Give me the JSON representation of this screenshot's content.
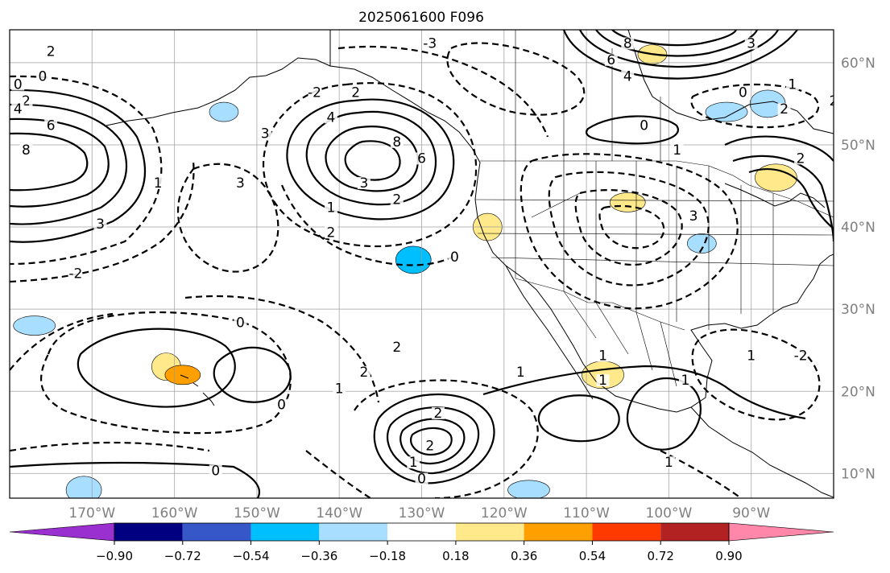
{
  "title": "2025061600 F096",
  "map": {
    "lon_range": [
      -180,
      -80
    ],
    "lat_range": [
      7,
      64
    ],
    "lon_ticks": [
      {
        "value": -170,
        "label": "170°W"
      },
      {
        "value": -160,
        "label": "160°W"
      },
      {
        "value": -150,
        "label": "150°W"
      },
      {
        "value": -140,
        "label": "140°W"
      },
      {
        "value": -130,
        "label": "130°W"
      },
      {
        "value": -120,
        "label": "120°W"
      },
      {
        "value": -110,
        "label": "110°W"
      },
      {
        "value": -100,
        "label": "100°W"
      },
      {
        "value": -90,
        "label": "90°W"
      }
    ],
    "lat_ticks": [
      {
        "value": 10,
        "label": "10°N"
      },
      {
        "value": 20,
        "label": "20°N"
      },
      {
        "value": 30,
        "label": "30°N"
      },
      {
        "value": 40,
        "label": "40°N"
      },
      {
        "value": 50,
        "label": "50°N"
      },
      {
        "value": 60,
        "label": "60°N"
      }
    ],
    "gridlines": true,
    "colors": {
      "grid": "#9a9a9a",
      "tick_label": "#808080",
      "contour": "#000000"
    }
  },
  "colorbar": {
    "placement": "bottom",
    "extend": "both",
    "colors": [
      "#9b30d0",
      "#000080",
      "#3557c8",
      "#00bfff",
      "#a8deff",
      "#ffffff",
      "#ffe98a",
      "#ffa000",
      "#ff3a00",
      "#b22222",
      "#ff88aa"
    ],
    "labels": [
      "−0.90",
      "−0.72",
      "−0.54",
      "−0.36",
      "−0.18",
      "0.18",
      "0.36",
      "0.54",
      "0.72",
      "0.90"
    ]
  },
  "shaded_areas": [
    {
      "lon": -154,
      "lat": 54,
      "color": "#a8deff"
    },
    {
      "lon": -131,
      "lat": 36,
      "color": "#00bfff"
    },
    {
      "lon": -177,
      "lat": 28,
      "color": "#a8deff"
    },
    {
      "lon": -161,
      "lat": 23,
      "color": "#ffe98a"
    },
    {
      "lon": -159,
      "lat": 22,
      "color": "#ffa000"
    },
    {
      "lon": -108,
      "lat": 22,
      "color": "#ffe98a"
    },
    {
      "lon": -102,
      "lat": 61,
      "color": "#ffe98a"
    },
    {
      "lon": -88,
      "lat": 55,
      "color": "#a8deff"
    },
    {
      "lon": -93,
      "lat": 54,
      "color": "#a8deff"
    },
    {
      "lon": -122,
      "lat": 40,
      "color": "#ffe98a"
    },
    {
      "lon": -105,
      "lat": 43,
      "color": "#ffe98a"
    },
    {
      "lon": -87,
      "lat": 46,
      "color": "#ffe98a"
    },
    {
      "lon": -96,
      "lat": 38,
      "color": "#a8deff"
    },
    {
      "lon": -171,
      "lat": 8,
      "color": "#a8deff"
    },
    {
      "lon": -117,
      "lat": 8,
      "color": "#a8deff"
    }
  ],
  "contour_labels": [
    {
      "lon": -175,
      "lat": 61,
      "text": "2"
    },
    {
      "lon": -176,
      "lat": 58,
      "text": "0"
    },
    {
      "lon": -179,
      "lat": 57,
      "text": "0"
    },
    {
      "lon": -178,
      "lat": 55,
      "text": "2"
    },
    {
      "lon": -179,
      "lat": 54,
      "text": "4"
    },
    {
      "lon": -175,
      "lat": 52,
      "text": "6"
    },
    {
      "lon": -178,
      "lat": 49,
      "text": "8"
    },
    {
      "lon": -169,
      "lat": 40,
      "text": "3"
    },
    {
      "lon": -162,
      "lat": 45,
      "text": "1"
    },
    {
      "lon": -172,
      "lat": 34,
      "text": "-2"
    },
    {
      "lon": -152,
      "lat": 45,
      "text": "3"
    },
    {
      "lon": -149,
      "lat": 51,
      "text": "3"
    },
    {
      "lon": -143,
      "lat": 56,
      "text": "-2"
    },
    {
      "lon": -129,
      "lat": 62,
      "text": "-3"
    },
    {
      "lon": -138,
      "lat": 56,
      "text": "2"
    },
    {
      "lon": -141,
      "lat": 53,
      "text": "4"
    },
    {
      "lon": -133,
      "lat": 50,
      "text": "8"
    },
    {
      "lon": -130,
      "lat": 48,
      "text": "6"
    },
    {
      "lon": -137,
      "lat": 45,
      "text": "3"
    },
    {
      "lon": -133,
      "lat": 43,
      "text": "2"
    },
    {
      "lon": -141,
      "lat": 42,
      "text": "1"
    },
    {
      "lon": -141,
      "lat": 39,
      "text": "2"
    },
    {
      "lon": -126,
      "lat": 36,
      "text": "0"
    },
    {
      "lon": -107,
      "lat": 60,
      "text": "6"
    },
    {
      "lon": -105,
      "lat": 62,
      "text": "8"
    },
    {
      "lon": -105,
      "lat": 58,
      "text": "4"
    },
    {
      "lon": -90,
      "lat": 62,
      "text": "3"
    },
    {
      "lon": -91,
      "lat": 56,
      "text": "0"
    },
    {
      "lon": -85,
      "lat": 57,
      "text": "1"
    },
    {
      "lon": -86,
      "lat": 54,
      "text": "2"
    },
    {
      "lon": -80,
      "lat": 55,
      "text": "2"
    },
    {
      "lon": -103,
      "lat": 52,
      "text": "0"
    },
    {
      "lon": -99,
      "lat": 49,
      "text": "1"
    },
    {
      "lon": -84,
      "lat": 48,
      "text": "2"
    },
    {
      "lon": -97,
      "lat": 41,
      "text": "3"
    },
    {
      "lon": -152,
      "lat": 28,
      "text": "0"
    },
    {
      "lon": -137,
      "lat": 22,
      "text": "2"
    },
    {
      "lon": -140,
      "lat": 20,
      "text": "1"
    },
    {
      "lon": -147,
      "lat": 18,
      "text": "0"
    },
    {
      "lon": -133,
      "lat": 25,
      "text": "2"
    },
    {
      "lon": -128,
      "lat": 17,
      "text": "2"
    },
    {
      "lon": -129,
      "lat": 13,
      "text": "2"
    },
    {
      "lon": -131,
      "lat": 11,
      "text": "1"
    },
    {
      "lon": -130,
      "lat": 9,
      "text": "0"
    },
    {
      "lon": -155,
      "lat": 10,
      "text": "0"
    },
    {
      "lon": -118,
      "lat": 22,
      "text": "1"
    },
    {
      "lon": -108,
      "lat": 24,
      "text": "1"
    },
    {
      "lon": -108,
      "lat": 21,
      "text": "1"
    },
    {
      "lon": -90,
      "lat": 24,
      "text": "1"
    },
    {
      "lon": -84,
      "lat": 24,
      "text": "-2"
    },
    {
      "lon": -98,
      "lat": 21,
      "text": "1"
    },
    {
      "lon": -100,
      "lat": 11,
      "text": "1"
    }
  ]
}
